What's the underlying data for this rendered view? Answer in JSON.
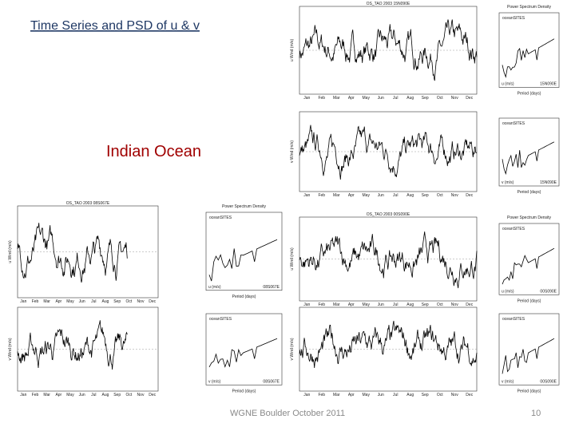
{
  "header": {
    "title": "Time Series and PSD of u & v",
    "subtitle": "Indian Ocean"
  },
  "footer": {
    "text": "WGNE Boulder October 2011",
    "page": "10"
  },
  "months": [
    "Jan",
    "Feb",
    "Mar",
    "Apr",
    "May",
    "Jun",
    "Jul",
    "Aug",
    "Sep",
    "Oct",
    "Nov",
    "Dec"
  ],
  "labels": {
    "u_axis": "u Wind (m/s)",
    "v_axis": "v Wind (m/s)",
    "psd_heading": "Power Spectrum Density",
    "source": "oceanSITES",
    "period": "Period (days)",
    "u_unit": "u (m/s)",
    "v_unit": "v (m/s)"
  },
  "groups": [
    {
      "title": "OS_TAO 2003 15N090E",
      "station": "15N090E"
    },
    {
      "title": "OS_TAO 2003 08S067E",
      "station": "08S067E"
    },
    {
      "title": "OS_TAO 2003 00S090E",
      "station": "00S090E"
    }
  ]
}
